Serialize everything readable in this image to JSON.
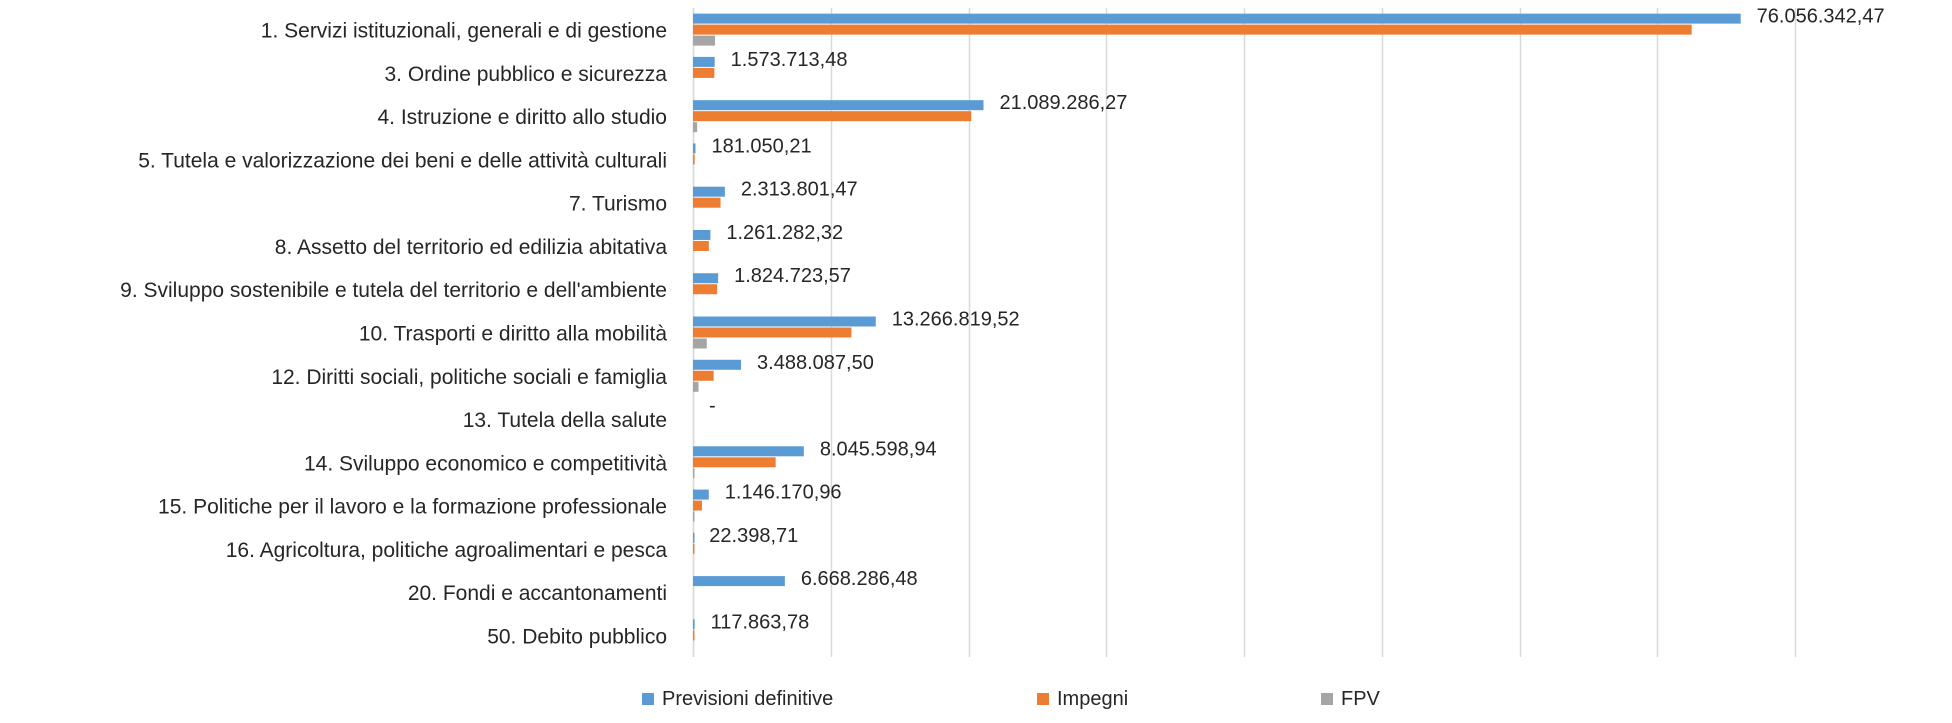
{
  "chart_data": {
    "type": "bar",
    "orientation": "horizontal",
    "categories": [
      "1. Servizi istituzionali, generali e di gestione",
      "3. Ordine pubblico e sicurezza",
      "4. Istruzione e diritto allo studio",
      "5. Tutela e valorizzazione dei beni e delle attività culturali",
      "7. Turismo",
      "8. Assetto del territorio ed edilizia abitativa",
      "9. Sviluppo sostenibile e tutela del territorio e dell'ambiente",
      "10. Trasporti e diritto alla mobilità",
      "12. Diritti sociali, politiche sociali e famiglia",
      "13. Tutela della salute",
      "14. Sviluppo economico e competitività",
      "15. Politiche per il lavoro e la formazione professionale",
      "16. Agricoltura, politiche agroalimentari e pesca",
      "20. Fondi e accantonamenti",
      "50. Debito pubblico"
    ],
    "series": [
      {
        "name": "Previsioni definitive",
        "color": "#5B9BD5",
        "values": [
          76056342.47,
          1573713.48,
          21089286.27,
          181050.21,
          2313801.47,
          1261282.32,
          1824723.57,
          13266819.52,
          3488087.5,
          0,
          8045598.94,
          1146170.96,
          22398.71,
          6668286.48,
          117863.78
        ]
      },
      {
        "name": "Impegni",
        "color": "#ED7D31",
        "values": [
          72500000,
          1550000,
          20200000,
          120000,
          2000000,
          1150000,
          1750000,
          11500000,
          1500000,
          0,
          6000000,
          650000,
          15000,
          0,
          90000
        ]
      },
      {
        "name": "FPV",
        "color": "#A5A5A5",
        "values": [
          1600000,
          0,
          300000,
          0,
          0,
          0,
          0,
          1000000,
          400000,
          0,
          100000,
          100000,
          0,
          0,
          0
        ]
      }
    ],
    "data_labels": [
      "76.056.342,47",
      "1.573.713,48",
      "21.089.286,27",
      "181.050,21",
      "2.313.801,47",
      "1.261.282,32",
      "1.824.723,57",
      "13.266.819,52",
      "3.488.087,50",
      "-",
      "8.045.598,94",
      "1.146.170,96",
      "22.398,71",
      "6.668.286,48",
      "117.863,78"
    ],
    "xlim": [
      0,
      80000000
    ],
    "grid": true,
    "legend_position": "bottom"
  }
}
